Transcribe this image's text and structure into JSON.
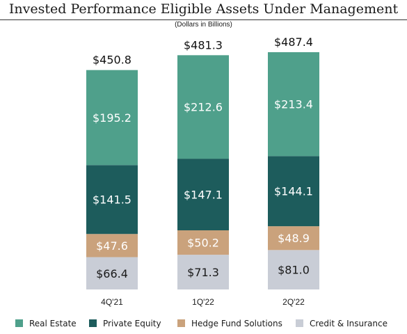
{
  "chart_data": {
    "type": "bar",
    "stacked": true,
    "title": "Invested Performance Eligible Assets Under Management",
    "subtitle": "(Dollars in Billions)",
    "categories": [
      "4Q'21",
      "1Q'22",
      "2Q'22"
    ],
    "series": [
      {
        "name": "Credit & Insurance",
        "color": "#c9cdd6",
        "values": [
          66.4,
          71.3,
          81.0
        ],
        "labels": [
          "$66.4",
          "$71.3",
          "$81.0"
        ],
        "label_color": "#1a1a1a"
      },
      {
        "name": "Hedge Fund Solutions",
        "color": "#caa27c",
        "values": [
          47.6,
          50.2,
          48.9
        ],
        "labels": [
          "$47.6",
          "$50.2",
          "$48.9"
        ],
        "label_color": "#ffffff"
      },
      {
        "name": "Private Equity",
        "color": "#1d5c5c",
        "values": [
          141.5,
          147.1,
          144.1
        ],
        "labels": [
          "$141.5",
          "$147.1",
          "$144.1"
        ],
        "label_color": "#ffffff"
      },
      {
        "name": "Real Estate",
        "color": "#4fa08b",
        "values": [
          195.2,
          212.6,
          213.4
        ],
        "labels": [
          "$195.2",
          "$212.6",
          "$213.4"
        ],
        "label_color": "#ffffff"
      }
    ],
    "totals": [
      450.8,
      481.3,
      487.4
    ],
    "total_labels": [
      "$450.8",
      "$481.3",
      "$487.4"
    ],
    "legend_order": [
      "Real Estate",
      "Private Equity",
      "Hedge Fund Solutions",
      "Credit & Insurance"
    ],
    "legend_position": "bottom",
    "ylim": [
      0,
      487.4
    ],
    "grid": false
  }
}
